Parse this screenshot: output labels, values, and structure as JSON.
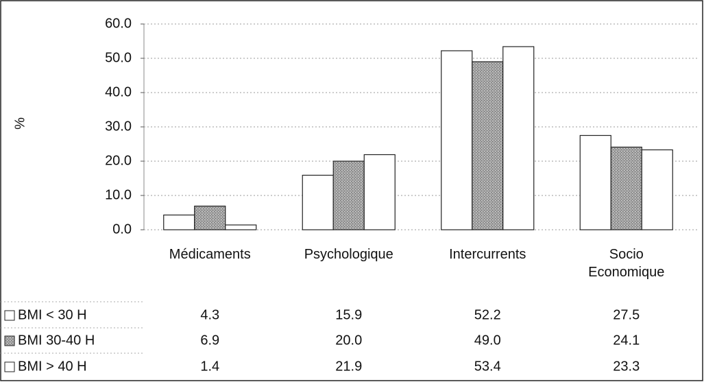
{
  "chart_data": {
    "type": "bar",
    "ylabel": "%",
    "categories": [
      "Médicaments",
      "Psychologique",
      "Intercurrents",
      "Socio Economique"
    ],
    "series": [
      {
        "name": "BMI < 30 H",
        "color": "#ffffff",
        "values": [
          4.3,
          15.9,
          52.2,
          27.5
        ],
        "value_labels": [
          "4.3",
          "15.9",
          "52.2",
          "27.5"
        ]
      },
      {
        "name": "BMI 30-40 H",
        "color": "#9a9a9a",
        "values": [
          6.9,
          20.0,
          49.0,
          24.1
        ],
        "value_labels": [
          "6.9",
          "20.0",
          "49.0",
          "24.1"
        ]
      },
      {
        "name": "BMI > 40 H",
        "color": "#ffffff",
        "values": [
          1.4,
          21.9,
          53.4,
          23.3
        ],
        "value_labels": [
          "1.4",
          "21.9",
          "53.4",
          "23.3"
        ]
      }
    ],
    "ylim": [
      0,
      60
    ],
    "yticks": [
      {
        "value": 0,
        "label": "0.0"
      },
      {
        "value": 10,
        "label": "10.0"
      },
      {
        "value": 20,
        "label": "20.0"
      },
      {
        "value": 30,
        "label": "30.0"
      },
      {
        "value": 40,
        "label": "40.0"
      },
      {
        "value": 50,
        "label": "50.0"
      },
      {
        "value": 60,
        "label": "60.0"
      }
    ],
    "grid": true,
    "legend": "table"
  }
}
